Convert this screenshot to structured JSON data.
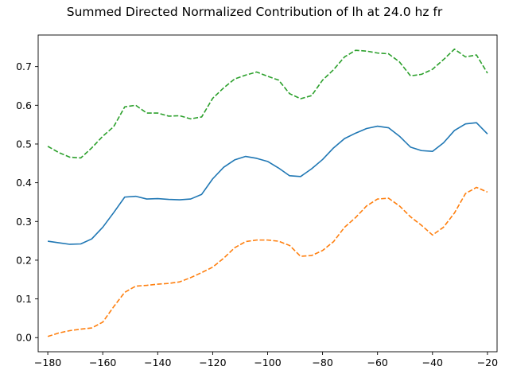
{
  "chart_data": {
    "type": "line",
    "title": "Summed Directed Normalized Contribution of lh at 24.0 hz fr",
    "xlabel": "",
    "ylabel": "",
    "xlim": [
      -183.5,
      -16.5
    ],
    "ylim": [
      -0.0365,
      0.7815
    ],
    "xticks": [
      -180,
      -160,
      -140,
      -120,
      -100,
      -80,
      -60,
      -40,
      -20
    ],
    "yticks": [
      0.0,
      0.1,
      0.2,
      0.3,
      0.4,
      0.5,
      0.6,
      0.7
    ],
    "xtick_labels": [
      "−180",
      "−160",
      "−140",
      "−120",
      "−100",
      "−80",
      "−60",
      "−40",
      "−20"
    ],
    "ytick_labels": [
      "0.0",
      "0.1",
      "0.2",
      "0.3",
      "0.4",
      "0.5",
      "0.6",
      "0.7"
    ],
    "grid": false,
    "legend": "none",
    "series": [
      {
        "color": "#1f77b4",
        "style": "solid",
        "x": [
          -180,
          -176,
          -172,
          -168,
          -164,
          -160,
          -156,
          -152,
          -148,
          -144,
          -140,
          -136,
          -132,
          -128,
          -124,
          -120,
          -116,
          -112,
          -108,
          -104,
          -100,
          -96,
          -92,
          -88,
          -84,
          -80,
          -76,
          -72,
          -68,
          -64,
          -60,
          -56,
          -52,
          -48,
          -44,
          -40,
          -36,
          -32,
          -28,
          -24,
          -20
        ],
        "y": [
          0.249,
          0.245,
          0.241,
          0.242,
          0.255,
          0.285,
          0.323,
          0.363,
          0.365,
          0.358,
          0.359,
          0.357,
          0.356,
          0.358,
          0.37,
          0.41,
          0.44,
          0.459,
          0.468,
          0.463,
          0.455,
          0.438,
          0.418,
          0.416,
          0.436,
          0.46,
          0.49,
          0.514,
          0.528,
          0.54,
          0.546,
          0.542,
          0.52,
          0.492,
          0.483,
          0.481,
          0.503,
          0.535,
          0.552,
          0.555,
          0.526
        ]
      },
      {
        "color": "#ff7f0e",
        "style": "dashed",
        "x": [
          -180,
          -176,
          -172,
          -168,
          -164,
          -160,
          -156,
          -152,
          -148,
          -144,
          -140,
          -136,
          -132,
          -128,
          -124,
          -120,
          -116,
          -112,
          -108,
          -104,
          -100,
          -96,
          -92,
          -88,
          -84,
          -80,
          -76,
          -72,
          -68,
          -64,
          -60,
          -56,
          -52,
          -48,
          -44,
          -40,
          -36,
          -32,
          -28,
          -24,
          -20
        ],
        "y": [
          0.003,
          0.012,
          0.018,
          0.022,
          0.025,
          0.04,
          0.08,
          0.117,
          0.133,
          0.135,
          0.138,
          0.14,
          0.144,
          0.155,
          0.168,
          0.182,
          0.205,
          0.232,
          0.248,
          0.252,
          0.252,
          0.249,
          0.238,
          0.21,
          0.212,
          0.225,
          0.248,
          0.285,
          0.31,
          0.34,
          0.358,
          0.36,
          0.34,
          0.312,
          0.29,
          0.265,
          0.285,
          0.322,
          0.372,
          0.388,
          0.376
        ]
      },
      {
        "color": "#2ca02c",
        "style": "dashed",
        "x": [
          -180,
          -176,
          -172,
          -168,
          -164,
          -160,
          -156,
          -152,
          -148,
          -144,
          -140,
          -136,
          -132,
          -128,
          -124,
          -120,
          -116,
          -112,
          -108,
          -104,
          -100,
          -96,
          -92,
          -88,
          -84,
          -80,
          -76,
          -72,
          -68,
          -64,
          -60,
          -56,
          -52,
          -48,
          -44,
          -40,
          -36,
          -32,
          -28,
          -24,
          -20
        ],
        "y": [
          0.494,
          0.478,
          0.466,
          0.464,
          0.49,
          0.52,
          0.545,
          0.596,
          0.6,
          0.58,
          0.58,
          0.572,
          0.573,
          0.565,
          0.57,
          0.618,
          0.645,
          0.668,
          0.678,
          0.686,
          0.675,
          0.665,
          0.63,
          0.617,
          0.625,
          0.665,
          0.692,
          0.725,
          0.742,
          0.74,
          0.735,
          0.733,
          0.712,
          0.676,
          0.68,
          0.693,
          0.718,
          0.745,
          0.725,
          0.73,
          0.683
        ]
      }
    ]
  }
}
